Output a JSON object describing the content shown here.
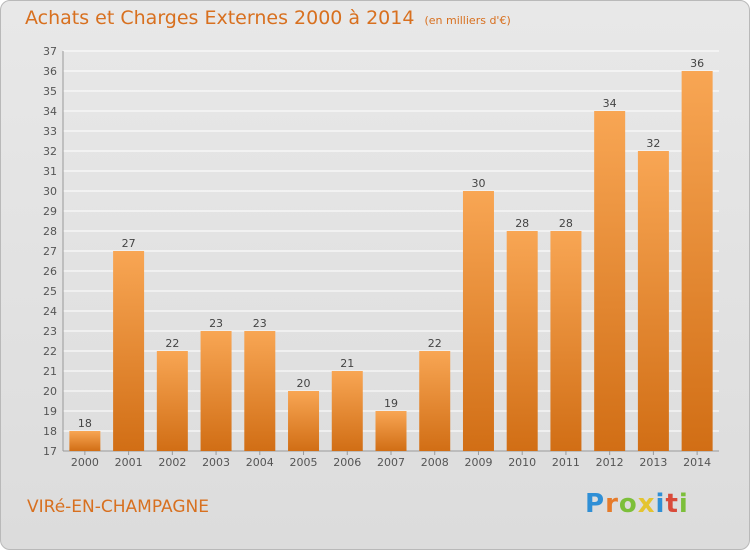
{
  "header": {
    "title": "Achats et Charges Externes 2000 à 2014",
    "subtitle": "(en milliers d'€)"
  },
  "footer": {
    "commune": "VIRé-EN-CHAMPAGNE",
    "logo": "Proxiti"
  },
  "colors": {
    "bar_top": "#f8a654",
    "bar_bottom": "#d16e15",
    "text_accent": "#d8701f",
    "gridline": "#ffffff"
  },
  "chart_data": {
    "type": "bar",
    "categories": [
      "2000",
      "2001",
      "2002",
      "2003",
      "2004",
      "2005",
      "2006",
      "2007",
      "2008",
      "2009",
      "2010",
      "2011",
      "2012",
      "2013",
      "2014"
    ],
    "values": [
      18,
      27,
      22,
      23,
      23,
      20,
      21,
      19,
      22,
      30,
      28,
      28,
      34,
      32,
      36
    ],
    "title": "Achats et Charges Externes 2000 à 2014",
    "subtitle": "(en milliers d'€)",
    "xlabel": "",
    "ylabel": "",
    "ylim": [
      17,
      37
    ],
    "yticks": [
      17,
      18,
      19,
      20,
      21,
      22,
      23,
      24,
      25,
      26,
      27,
      28,
      29,
      30,
      31,
      32,
      33,
      34,
      35,
      36,
      37
    ],
    "grid": true,
    "data_labels": true
  }
}
